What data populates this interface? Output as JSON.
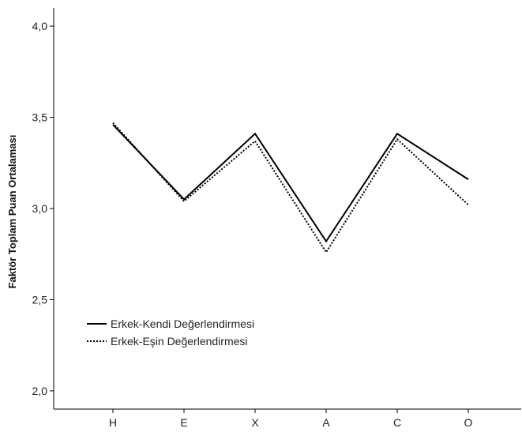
{
  "chart_data": {
    "type": "line",
    "title": "",
    "xlabel": "",
    "ylabel": "Faktör Toplam Puan Ortalaması",
    "categories": [
      "H",
      "E",
      "X",
      "A",
      "C",
      "O"
    ],
    "ylim": [
      1.9,
      4.1
    ],
    "yticks": [
      "2,0",
      "2,5",
      "3,0",
      "3,5",
      "4,0"
    ],
    "ytick_values": [
      2.0,
      2.5,
      3.0,
      3.5,
      4.0
    ],
    "grid": false,
    "legend_position": "lower-left",
    "series": [
      {
        "name": "Erkek-Kendi Değerlendirmesi",
        "values": [
          3.46,
          3.05,
          3.41,
          2.82,
          3.41,
          3.16
        ],
        "line_style": "solid",
        "color": "#000000"
      },
      {
        "name": "Erkek-Eşin Değerlendirmesi",
        "values": [
          3.47,
          3.04,
          3.37,
          2.76,
          3.38,
          3.02
        ],
        "line_style": "dotted",
        "color": "#000000"
      }
    ]
  }
}
